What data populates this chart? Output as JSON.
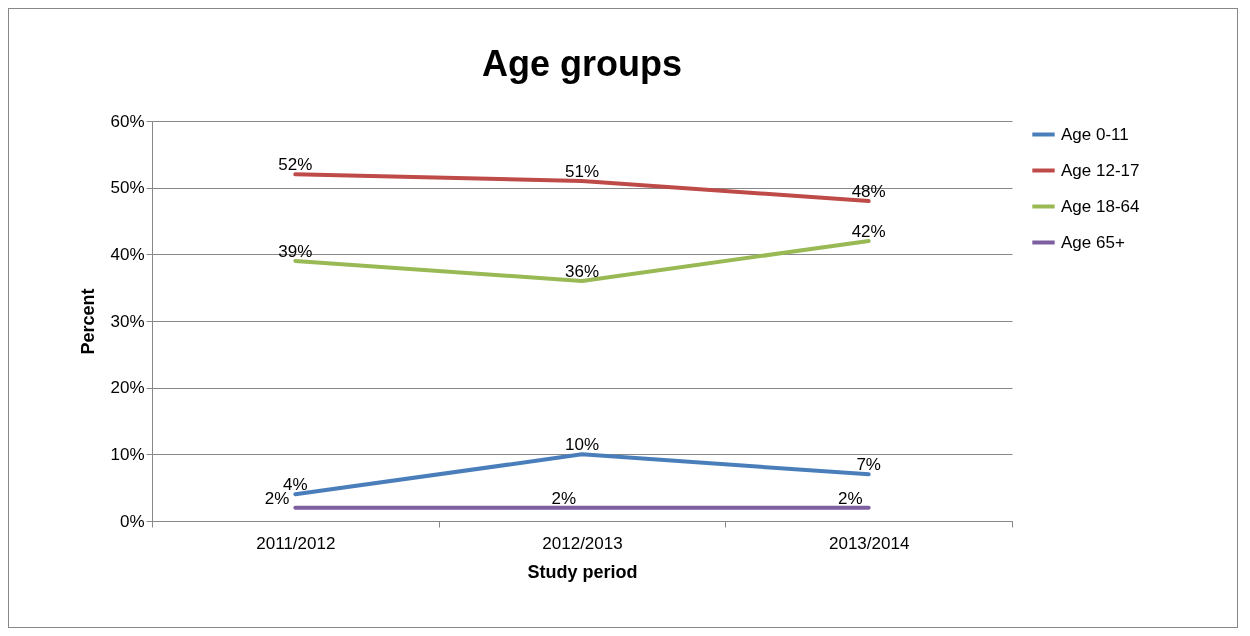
{
  "chart_data": {
    "type": "line",
    "title": "Age groups",
    "xlabel": "Study period",
    "ylabel": "Percent",
    "categories": [
      "2011/2012",
      "2012/2013",
      "2013/2014"
    ],
    "series": [
      {
        "name": "Age 0-11",
        "color": "#4a7ebb",
        "values": [
          4,
          10,
          7
        ],
        "value_labels": [
          "4%",
          "10%",
          "7%"
        ]
      },
      {
        "name": "Age 12-17",
        "color": "#be4b48",
        "values": [
          52,
          51,
          48
        ],
        "value_labels": [
          "52%",
          "51%",
          "48%"
        ]
      },
      {
        "name": "Age 18-64",
        "color": "#98b954",
        "values": [
          39,
          36,
          42
        ],
        "value_labels": [
          "39%",
          "36%",
          "42%"
        ]
      },
      {
        "name": "Age 65+",
        "color": "#7d5fa0",
        "values": [
          2,
          2,
          2
        ],
        "value_labels": [
          "2%",
          "2%",
          "2%"
        ]
      }
    ],
    "ylim": [
      0,
      60
    ],
    "yticks": [
      {
        "value": 0,
        "label": "0%"
      },
      {
        "value": 10,
        "label": "10%"
      },
      {
        "value": 20,
        "label": "20%"
      },
      {
        "value": 30,
        "label": "30%"
      },
      {
        "value": 40,
        "label": "40%"
      },
      {
        "value": 50,
        "label": "50%"
      },
      {
        "value": 60,
        "label": "60%"
      }
    ],
    "grid": "y",
    "legend": "right",
    "marker": "none",
    "line_style": "solid"
  }
}
